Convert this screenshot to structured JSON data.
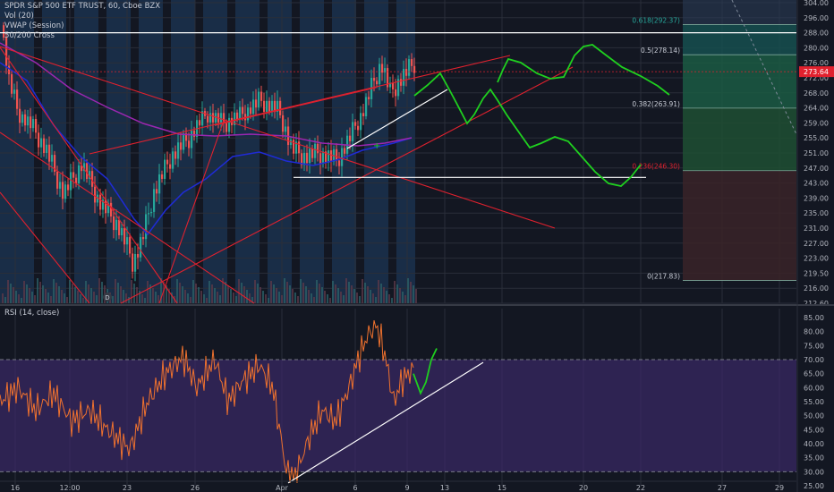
{
  "legend": {
    "symbol": "SPDR S&P 500 ETF TRUST, 60, Cboe BZX",
    "vol": "Vol (20)",
    "vwap": "VWAP (Session)",
    "cross": "50/200 Cross"
  },
  "rsi_title": "RSI (14, close)",
  "price_badge": "273.64",
  "colors": {
    "background": "#131722",
    "session_band": "#1f4066",
    "trendline": "#e0212e",
    "projection": "#1fd01f",
    "level_line": "#ffffff",
    "rsi_line": "#f0722e",
    "rsi_band": "#3b2a66",
    "ma_blue": "#1f2bd6",
    "ma_purple": "#9b27b0",
    "badge": "#e0212e"
  },
  "icons": {
    "dividend_marker": "D"
  },
  "chart_data": [
    {
      "type": "line",
      "name": "price-pane",
      "title": "SPDR S&P 500 ETF TRUST, 60, Cboe BZX",
      "y_axis_ticks": [
        "304.00",
        "296.00",
        "288.00",
        "280.00",
        "276.00",
        "272.00",
        "268.00",
        "264.00",
        "259.00",
        "255.00",
        "251.00",
        "247.00",
        "243.00",
        "239.00",
        "235.00",
        "231.00",
        "227.00",
        "223.00",
        "219.50",
        "216.00",
        "212.60"
      ],
      "x_axis_ticks": [
        "16",
        "12:00",
        "23",
        "26",
        "Apr",
        "6",
        "9",
        "13",
        "15",
        "20",
        "22",
        "27",
        "29"
      ],
      "ylim": [
        212.6,
        304.0
      ],
      "current_price": 273.64,
      "fibonacci": [
        {
          "label": "0.618(292.37)",
          "value": 292.37
        },
        {
          "label": "0.5(278.14)",
          "value": 278.14
        },
        {
          "label": "0.382(263.91)",
          "value": 263.91
        },
        {
          "label": "0.236(246.30)",
          "value": 246.3
        },
        {
          "label": "0(217.83)",
          "value": 217.83
        }
      ],
      "horizontal_levels": [
        288.0,
        244.5
      ],
      "legend": [
        "Vol (20)",
        "VWAP (Session)",
        "50/200 Cross"
      ]
    },
    {
      "type": "line",
      "name": "rsi-pane",
      "title": "RSI (14, close)",
      "y_axis_ticks": [
        "85.00",
        "80.00",
        "75.00",
        "70.00",
        "65.00",
        "60.00",
        "55.00",
        "50.00",
        "45.00",
        "40.00",
        "35.00",
        "30.00",
        "25.00"
      ],
      "ylim": [
        25,
        85
      ],
      "band": [
        30,
        70
      ]
    }
  ]
}
